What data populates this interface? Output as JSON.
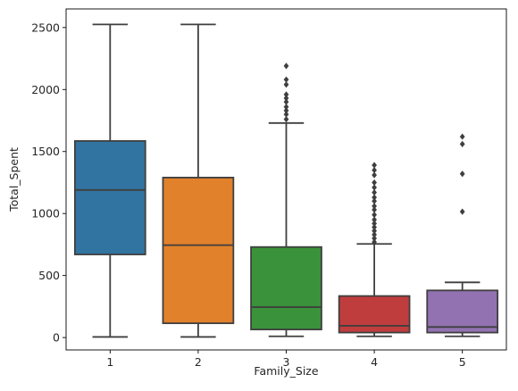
{
  "chart_data": {
    "type": "box",
    "title": "",
    "xlabel": "Family_Size",
    "ylabel": "Total_Spent",
    "categories": [
      "1",
      "2",
      "3",
      "4",
      "5"
    ],
    "ylim": [
      -100,
      2650
    ],
    "yticks": [
      0,
      500,
      1000,
      1500,
      2000,
      2500
    ],
    "grid": false,
    "legend": "none",
    "colors": [
      "#3274a1",
      "#e1812c",
      "#3a923a",
      "#c03d3e",
      "#9372b2"
    ],
    "line_color": "#3f3f3f",
    "boxes": [
      {
        "category": "1",
        "whislo": 5,
        "q1": 670,
        "med": 1190,
        "q3": 1585,
        "whishi": 2525,
        "fliers": []
      },
      {
        "category": "2",
        "whislo": 5,
        "q1": 115,
        "med": 745,
        "q3": 1290,
        "whishi": 2525,
        "fliers": []
      },
      {
        "category": "3",
        "whislo": 10,
        "q1": 65,
        "med": 245,
        "q3": 730,
        "whishi": 1730,
        "fliers": [
          1760,
          1800,
          1830,
          1860,
          1900,
          1930,
          1960,
          2040,
          2080,
          2190
        ]
      },
      {
        "category": "4",
        "whislo": 10,
        "q1": 40,
        "med": 95,
        "q3": 335,
        "whishi": 755,
        "fliers": [
          770,
          800,
          830,
          860,
          890,
          920,
          950,
          990,
          1030,
          1060,
          1100,
          1130,
          1170,
          1210,
          1250,
          1310,
          1350,
          1390
        ]
      },
      {
        "category": "5",
        "whislo": 10,
        "q1": 40,
        "med": 85,
        "q3": 380,
        "whishi": 445,
        "fliers": [
          1015,
          1320,
          1560,
          1620
        ]
      }
    ]
  }
}
